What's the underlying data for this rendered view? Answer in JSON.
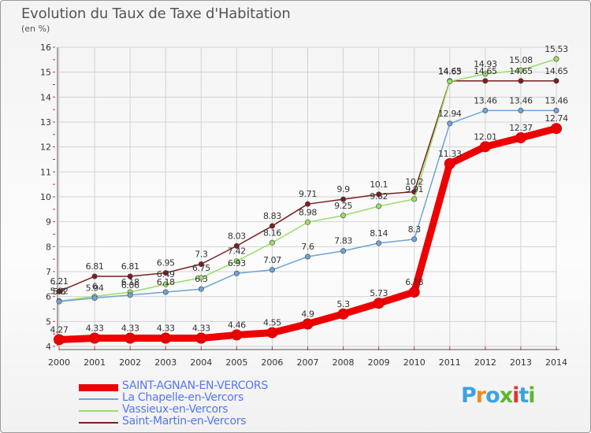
{
  "header": {
    "title": "Evolution du Taux de Taxe d'Habitation",
    "unit": "(en %)"
  },
  "logo": {
    "text": "Proxiti",
    "colors": [
      "#3aa3e0",
      "#f08a1c",
      "#3aa3e0",
      "#5cb82e",
      "#e8302a",
      "#3aa3e0",
      "#5cb82e"
    ]
  },
  "chart_data": {
    "type": "line",
    "title": "Evolution du Taux de Taxe d'Habitation",
    "ylabel": "(en %)",
    "xlabel": "",
    "ylim": [
      4,
      16
    ],
    "yticks": [
      4,
      5,
      6,
      7,
      8,
      9,
      10,
      11,
      12,
      13,
      14,
      15,
      16
    ],
    "grid": true,
    "legend_position": "bottom-left",
    "x": [
      "2000",
      "2001",
      "2002",
      "2003",
      "2004",
      "2005",
      "2006",
      "2007",
      "2008",
      "2009",
      "2010",
      "2011",
      "2012",
      "2013",
      "2014"
    ],
    "series": [
      {
        "name": "SAINT-AGNAN-EN-VERCORS",
        "color": "#ee0000",
        "values": [
          4.27,
          4.33,
          4.33,
          4.33,
          4.33,
          4.46,
          4.55,
          4.9,
          5.3,
          5.73,
          6.18,
          11.33,
          12.01,
          12.37,
          12.74
        ],
        "labels": [
          "4.27",
          "4.33",
          "4.33",
          "4.33",
          "4.33",
          "4.46",
          "4.55",
          "4.9",
          "5.3",
          "5.73",
          "6.18",
          "11.33",
          "12.01",
          "12.37",
          "12.74"
        ]
      },
      {
        "name": "La Chapelle-en-Vercors",
        "color": "#6ea3d6",
        "values": [
          5.8,
          5.94,
          6.06,
          6.18,
          6.3,
          6.93,
          7.07,
          7.6,
          7.83,
          8.14,
          8.3,
          12.94,
          13.46,
          13.46,
          13.46
        ],
        "labels": [
          "5.8",
          "5.94",
          "6.06",
          "6.18",
          "6.3",
          "6.93",
          "7.07",
          "7.6",
          "7.83",
          "8.14",
          "8.3",
          "12.94",
          "13.46",
          "13.46",
          "13.46"
        ]
      },
      {
        "name": "Vassieux-en-Vercors",
        "color": "#99dd66",
        "values": [
          5.82,
          6.0,
          6.18,
          6.49,
          6.75,
          7.42,
          8.16,
          8.98,
          9.25,
          9.62,
          9.91,
          14.63,
          14.93,
          15.08,
          15.53
        ],
        "labels": [
          "5.82",
          "6",
          "6.18",
          "6.49",
          "6.75",
          "7.42",
          "8.16",
          "8.98",
          "9.25",
          "9.62",
          "9.91",
          "14.63",
          "14.93",
          "15.08",
          "15.53"
        ]
      },
      {
        "name": "Saint-Martin-en-Vercors",
        "color": "#7a1f1f",
        "values": [
          6.21,
          6.81,
          6.81,
          6.95,
          7.3,
          8.03,
          8.83,
          9.71,
          9.9,
          10.1,
          10.2,
          14.65,
          14.65,
          14.65,
          14.65
        ],
        "labels": [
          "6.21",
          "6.81",
          "6.81",
          "6.95",
          "7.3",
          "8.03",
          "8.83",
          "9.71",
          "9.9",
          "10.1",
          "10.2",
          "14.65",
          "14.65",
          "14.65",
          "14.65"
        ]
      }
    ]
  }
}
